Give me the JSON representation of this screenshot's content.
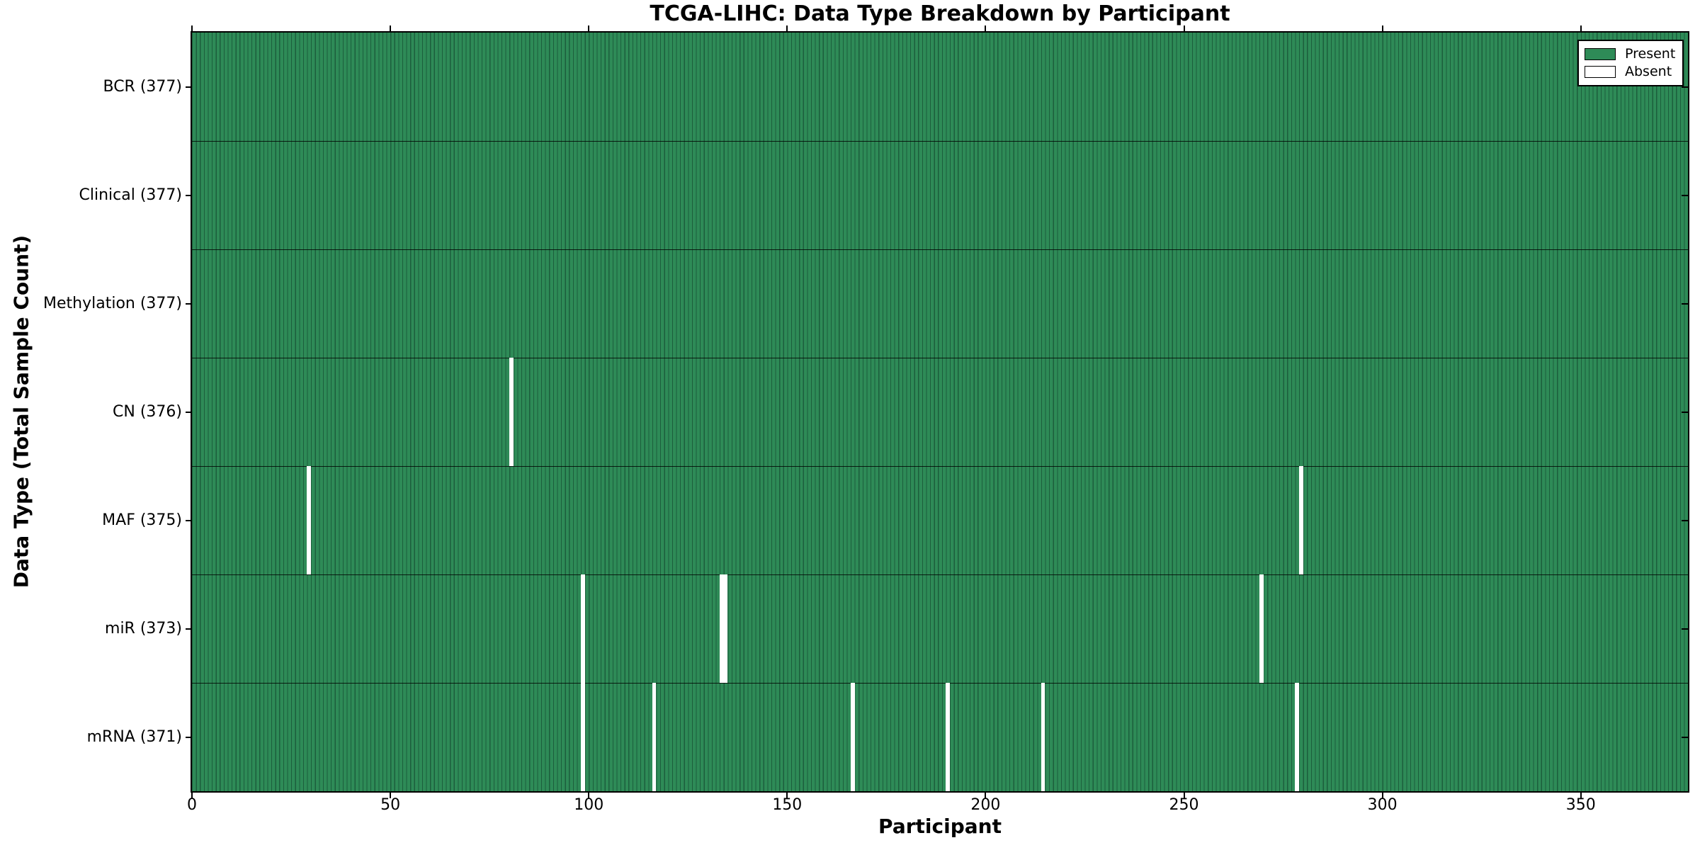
{
  "title": "TCGA-LIHC: Data Type Breakdown by Participant",
  "chart_data": {
    "type": "heatmap",
    "title": "TCGA-LIHC: Data Type Breakdown by Participant",
    "xlabel": "Participant",
    "ylabel": "Data Type (Total Sample Count)",
    "x_ticks": [
      0,
      50,
      100,
      150,
      200,
      250,
      300,
      350
    ],
    "xlim": [
      0,
      377
    ],
    "n_participants": 377,
    "grid": false,
    "legend_position": "upper right",
    "rows": [
      {
        "data_type": "BCR",
        "label": "BCR (377)",
        "total": 377,
        "absent_participants": []
      },
      {
        "data_type": "Clinical",
        "label": "Clinical (377)",
        "total": 377,
        "absent_participants": []
      },
      {
        "data_type": "Methylation",
        "label": "Methylation (377)",
        "total": 377,
        "absent_participants": []
      },
      {
        "data_type": "CN",
        "label": "CN (376)",
        "total": 376,
        "absent_participants": [
          80
        ]
      },
      {
        "data_type": "MAF",
        "label": "MAF (375)",
        "total": 375,
        "absent_participants": [
          29,
          279
        ]
      },
      {
        "data_type": "miR",
        "label": "miR (373)",
        "total": 373,
        "absent_participants": [
          98,
          133,
          134,
          269
        ]
      },
      {
        "data_type": "mRNA",
        "label": "mRNA (371)",
        "total": 371,
        "absent_participants": [
          98,
          116,
          166,
          190,
          214,
          278
        ]
      }
    ],
    "legend": [
      {
        "label": "Present",
        "color": "#2e8b57"
      },
      {
        "label": "Absent",
        "color": "#ffffff"
      }
    ],
    "colors": {
      "present": "#2e8b57",
      "present_edge": "#1c5e3c",
      "absent": "#ffffff",
      "border": "#000000"
    }
  }
}
